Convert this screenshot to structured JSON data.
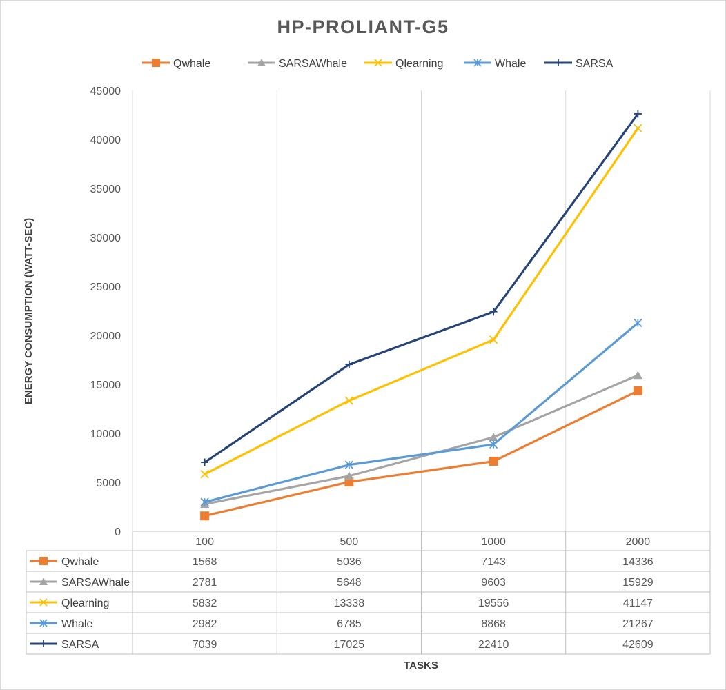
{
  "chart_data": {
    "type": "line",
    "title": "HP-PROLIANT-G5",
    "xlabel": "TASKS",
    "ylabel": "ENERGY CONSUMPTION (WATT-SEC)",
    "categories": [
      "100",
      "500",
      "1000",
      "2000"
    ],
    "ylim": [
      0,
      45000
    ],
    "yticks": [
      0,
      5000,
      10000,
      15000,
      20000,
      25000,
      30000,
      35000,
      40000,
      45000
    ],
    "grid": "vertical",
    "legend": "top",
    "data_table": true,
    "series": [
      {
        "name": "Qwhale",
        "values": [
          1568,
          5036,
          7143,
          14336
        ],
        "color": "#ED7D31",
        "marker": "square"
      },
      {
        "name": "SARSAWhale",
        "values": [
          2781,
          5648,
          9603,
          15929
        ],
        "color": "#A5A5A5",
        "marker": "triangle"
      },
      {
        "name": "Qlearning",
        "values": [
          5832,
          13338,
          19556,
          41147
        ],
        "color": "#FFC000",
        "marker": "x"
      },
      {
        "name": "Whale",
        "values": [
          2982,
          6785,
          8868,
          21267
        ],
        "color": "#5B9BD5",
        "marker": "star"
      },
      {
        "name": "SARSA",
        "values": [
          7039,
          17025,
          22410,
          42609
        ],
        "color": "#264478",
        "marker": "plus"
      }
    ]
  }
}
